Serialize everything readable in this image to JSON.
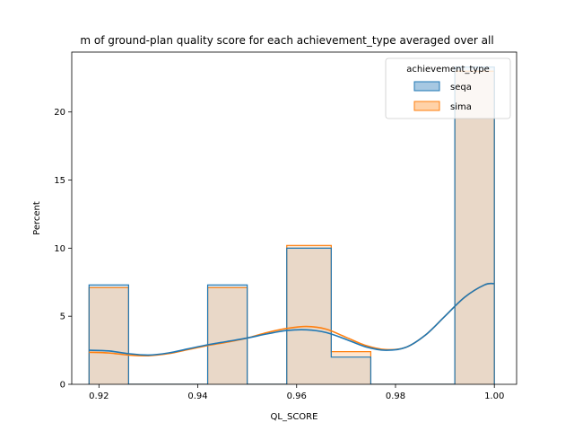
{
  "chart_data": {
    "type": "histogram",
    "title": "m of ground-plan quality score for each achievement_type averaged over all",
    "xlabel": "QL_SCORE",
    "ylabel": "Percent",
    "xlim": [
      0.9145,
      1.0045
    ],
    "ylim": [
      0,
      24.4
    ],
    "xticks": [
      "0.92",
      "0.94",
      "0.96",
      "0.98",
      "1.00"
    ],
    "xtick_values": [
      0.92,
      0.94,
      0.96,
      0.98,
      1.0
    ],
    "yticks": [
      "0",
      "5",
      "10",
      "15",
      "20"
    ],
    "ytick_values": [
      0,
      5,
      10,
      15,
      20
    ],
    "grid": false,
    "legend": {
      "title": "achievement_type",
      "placement": "top-right",
      "entries": [
        "seqa",
        "sima"
      ]
    },
    "bin_edges": [
      0.918,
      0.926,
      0.934,
      0.942,
      0.95,
      0.958,
      0.967,
      0.975,
      0.983,
      0.992,
      1.0
    ],
    "series": [
      {
        "name": "seqa",
        "color": "#1f77b4",
        "fill": "#a6c8e2",
        "values": [
          7.3,
          0,
          0,
          7.3,
          0,
          10.0,
          2.0,
          0,
          0,
          23.3
        ],
        "kde": {
          "x": [
            0.918,
            0.922,
            0.926,
            0.93,
            0.934,
            0.938,
            0.942,
            0.946,
            0.95,
            0.954,
            0.958,
            0.962,
            0.966,
            0.97,
            0.974,
            0.978,
            0.982,
            0.986,
            0.99,
            0.994,
            0.998,
            1.0
          ],
          "y": [
            2.5,
            2.45,
            2.25,
            2.15,
            2.3,
            2.6,
            2.9,
            3.15,
            3.4,
            3.7,
            3.95,
            4.0,
            3.8,
            3.3,
            2.75,
            2.5,
            2.7,
            3.6,
            5.0,
            6.4,
            7.3,
            7.4
          ]
        }
      },
      {
        "name": "sima",
        "color": "#ff7f0e",
        "fill": "#ffd2a8",
        "values": [
          7.1,
          0,
          0,
          7.1,
          0,
          10.2,
          2.4,
          0,
          0,
          23.0
        ],
        "kde": {
          "x": [
            0.918,
            0.922,
            0.926,
            0.93,
            0.934,
            0.938,
            0.942,
            0.946,
            0.95,
            0.954,
            0.958,
            0.962,
            0.966,
            0.97,
            0.974,
            0.978,
            0.982,
            0.986,
            0.99,
            0.994,
            0.998,
            1.0
          ],
          "y": [
            2.35,
            2.3,
            2.15,
            2.1,
            2.25,
            2.55,
            2.85,
            3.1,
            3.4,
            3.8,
            4.1,
            4.25,
            4.05,
            3.45,
            2.85,
            2.55,
            2.7,
            3.6,
            5.0,
            6.4,
            7.3,
            7.4
          ]
        }
      }
    ]
  }
}
